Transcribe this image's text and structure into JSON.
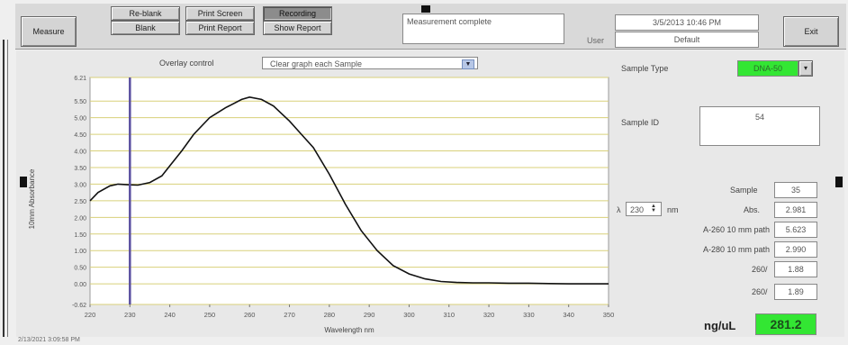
{
  "toolbar": {
    "measure_label": "Measure",
    "reblank_label": "Re-blank",
    "blank_label": "Blank",
    "printscreen_label": "Print Screen",
    "printreport_label": "Print Report",
    "recording_label": "Recording",
    "showreport_label": "Show Report",
    "exit_label": "Exit",
    "status_text": "Measurement complete",
    "datetime": "3/5/2013 10:46 PM",
    "user_label": "User",
    "user_value": "Default"
  },
  "overlay": {
    "label": "Overlay control",
    "selected": "Clear graph each Sample"
  },
  "sample_type": {
    "label": "Sample Type",
    "value": "DNA-50"
  },
  "sample_id": {
    "label": "Sample ID",
    "value": "54"
  },
  "readouts": {
    "sample_label": "Sample",
    "sample_value": "35",
    "lambda_symbol": "λ",
    "lambda_value": "230",
    "lambda_unit": "nm",
    "abs_label": "Abs.",
    "abs_value": "2.981",
    "a260_label": "A-260 10 mm path",
    "a260_value": "5.623",
    "a280_label": "A-280 10 mm path",
    "a280_value": "2.990",
    "ratio1_label": "260/",
    "ratio1_value": "1.88",
    "ratio2_label": "260/",
    "ratio2_value": "1.89",
    "conc_unit": "ng/uL",
    "conc_value": "281.2"
  },
  "footer": {
    "file_text": "2/13/2021 3:09:58 PM"
  },
  "colors": {
    "accent_green": "#33e633",
    "cursor_line": "#5a4fa0",
    "grid": "#d8d07a"
  },
  "chart_data": {
    "type": "line",
    "xlabel": "Wavelength nm",
    "ylabel": "10mm Absorbance",
    "xlim": [
      220,
      350
    ],
    "ylim": [
      -0.62,
      6.21
    ],
    "x_ticks": [
      "220",
      "230",
      "240",
      "250",
      "260",
      "270",
      "280",
      "290",
      "300",
      "310",
      "320",
      "330",
      "340",
      "350"
    ],
    "y_ticks": [
      "6.21",
      "5.50",
      "5.00",
      "4.50",
      "4.00",
      "3.50",
      "3.00",
      "2.50",
      "2.00",
      "1.50",
      "1.00",
      "0.50",
      "0.00",
      "-0.62"
    ],
    "cursor_x": 230,
    "series": [
      {
        "x": [
          220,
          222,
          225,
          227,
          230,
          232,
          235,
          238,
          240,
          243,
          246,
          250,
          254,
          258,
          260,
          263,
          266,
          270,
          273,
          276,
          280,
          284,
          288,
          292,
          296,
          300,
          304,
          308,
          312,
          316,
          320,
          325,
          330,
          335,
          340,
          345,
          350
        ],
        "y": [
          2.5,
          2.75,
          2.95,
          3.0,
          2.98,
          2.97,
          3.05,
          3.25,
          3.55,
          4.0,
          4.5,
          5.0,
          5.3,
          5.55,
          5.62,
          5.55,
          5.35,
          4.9,
          4.5,
          4.1,
          3.3,
          2.4,
          1.6,
          1.0,
          0.55,
          0.3,
          0.15,
          0.07,
          0.04,
          0.03,
          0.03,
          0.02,
          0.02,
          0.01,
          0.0,
          0.0,
          0.0
        ]
      }
    ]
  }
}
